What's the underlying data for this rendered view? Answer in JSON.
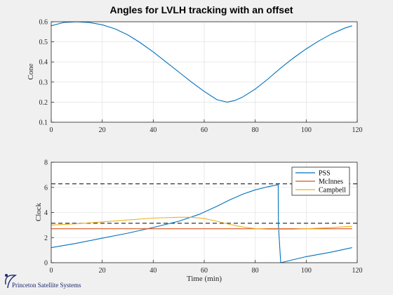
{
  "figure": {
    "title": "Angles for LVLH tracking with an offset",
    "brand": "Princeton Satellite Systems"
  },
  "colors": {
    "background": "#f0f0f0",
    "axes_bg": "#ffffff",
    "grid": "#dcdcdc",
    "series_blue": "#0072bd",
    "series_orange": "#d95319",
    "series_yellow": "#edb120",
    "dashed": "#000000"
  },
  "chart_data": [
    {
      "type": "line",
      "title": "",
      "xlabel": "",
      "ylabel": "Cone",
      "xlim": [
        0,
        120
      ],
      "ylim": [
        0.1,
        0.6
      ],
      "xticks": [
        "0",
        "20",
        "40",
        "60",
        "80",
        "100",
        "120"
      ],
      "yticks": [
        "0.1",
        "0.2",
        "0.3",
        "0.4",
        "0.5",
        "0.6"
      ],
      "grid": true,
      "series": [
        {
          "color": "#0072bd",
          "x": [
            0,
            5,
            10,
            15,
            20,
            25,
            30,
            35,
            40,
            45,
            50,
            55,
            60,
            65,
            69,
            72,
            75,
            80,
            85,
            90,
            95,
            100,
            105,
            110,
            115,
            118
          ],
          "y": [
            0.58,
            0.597,
            0.6,
            0.596,
            0.585,
            0.565,
            0.535,
            0.495,
            0.45,
            0.4,
            0.35,
            0.3,
            0.253,
            0.212,
            0.2,
            0.208,
            0.225,
            0.265,
            0.315,
            0.37,
            0.42,
            0.465,
            0.505,
            0.54,
            0.568,
            0.58
          ]
        }
      ]
    },
    {
      "type": "line",
      "title": "",
      "xlabel": "Time (min)",
      "ylabel": "Clock",
      "xlim": [
        0,
        120
      ],
      "ylim": [
        0,
        8
      ],
      "xticks": [
        "0",
        "20",
        "40",
        "60",
        "80",
        "100",
        "120"
      ],
      "yticks": [
        "0",
        "2",
        "4",
        "6",
        "8"
      ],
      "grid": true,
      "legend_position": "top-right",
      "reference_lines": [
        6.28,
        3.14
      ],
      "series": [
        {
          "name": "PSS",
          "color": "#0072bd",
          "x": [
            0,
            10,
            20,
            30,
            40,
            50,
            58,
            65,
            70,
            75,
            80,
            85,
            89,
            89.1,
            90,
            100,
            110,
            118
          ],
          "y": [
            1.2,
            1.55,
            1.95,
            2.35,
            2.8,
            3.3,
            3.85,
            4.5,
            5.0,
            5.45,
            5.8,
            6.05,
            6.22,
            3.0,
            0.0,
            0.48,
            0.85,
            1.2
          ]
        },
        {
          "name": "McInnes",
          "color": "#d95319",
          "x": [
            0,
            118
          ],
          "y": [
            2.7,
            2.7
          ]
        },
        {
          "name": "Campbell",
          "color": "#edb120",
          "x": [
            0,
            10,
            20,
            30,
            40,
            50,
            55,
            60,
            65,
            70,
            75,
            80,
            85,
            90,
            95,
            100,
            110,
            118
          ],
          "y": [
            3.0,
            3.1,
            3.25,
            3.4,
            3.55,
            3.62,
            3.62,
            3.52,
            3.3,
            3.05,
            2.85,
            2.72,
            2.66,
            2.65,
            2.66,
            2.7,
            2.8,
            2.9
          ]
        }
      ]
    }
  ]
}
